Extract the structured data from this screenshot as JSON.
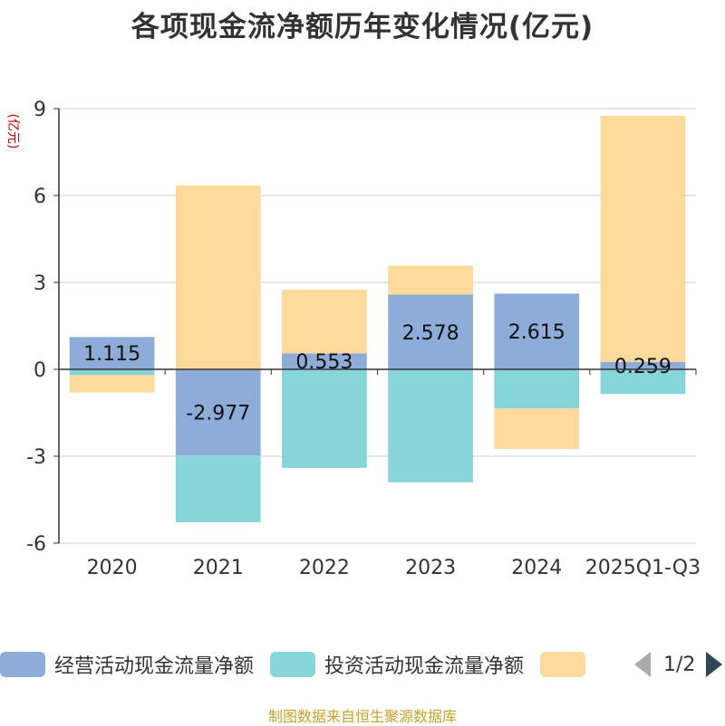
{
  "chart_data": {
    "type": "bar",
    "stacked": true,
    "title": "各项现金流净额历年变化情况(亿元)",
    "ylabel": "(亿元)",
    "xlabel": "",
    "ylim": [
      -6,
      9
    ],
    "yticks": [
      -6,
      -3,
      0,
      3,
      6,
      9
    ],
    "categories": [
      "2020",
      "2021",
      "2022",
      "2023",
      "2024",
      "2025Q1-Q3"
    ],
    "series": [
      {
        "name": "经营活动现金流量净额",
        "color": "#8eacd8",
        "values": [
          1.115,
          -2.977,
          0.553,
          2.578,
          2.615,
          0.259
        ],
        "labels": [
          "1.115",
          "-2.977",
          "0.553",
          "2.578",
          "2.615",
          "0.259"
        ]
      },
      {
        "name": "投资活动现金流量净额",
        "color": "#86d5d8",
        "values": [
          -0.2,
          -2.3,
          -3.4,
          -3.9,
          -1.35,
          -0.85
        ]
      },
      {
        "name": "",
        "color": "#fdd99b",
        "values": [
          -0.6,
          6.35,
          2.2,
          1.0,
          -1.4,
          8.5
        ]
      }
    ]
  },
  "legend": {
    "items": [
      {
        "label": "经营活动现金流量净额",
        "color": "#8eacd8"
      },
      {
        "label": "投资活动现金流量净额",
        "color": "#86d5d8"
      },
      {
        "label": "",
        "color": "#fdd99b"
      }
    ],
    "page": "1/2"
  },
  "source": "制图数据来自恒生聚源数据库"
}
